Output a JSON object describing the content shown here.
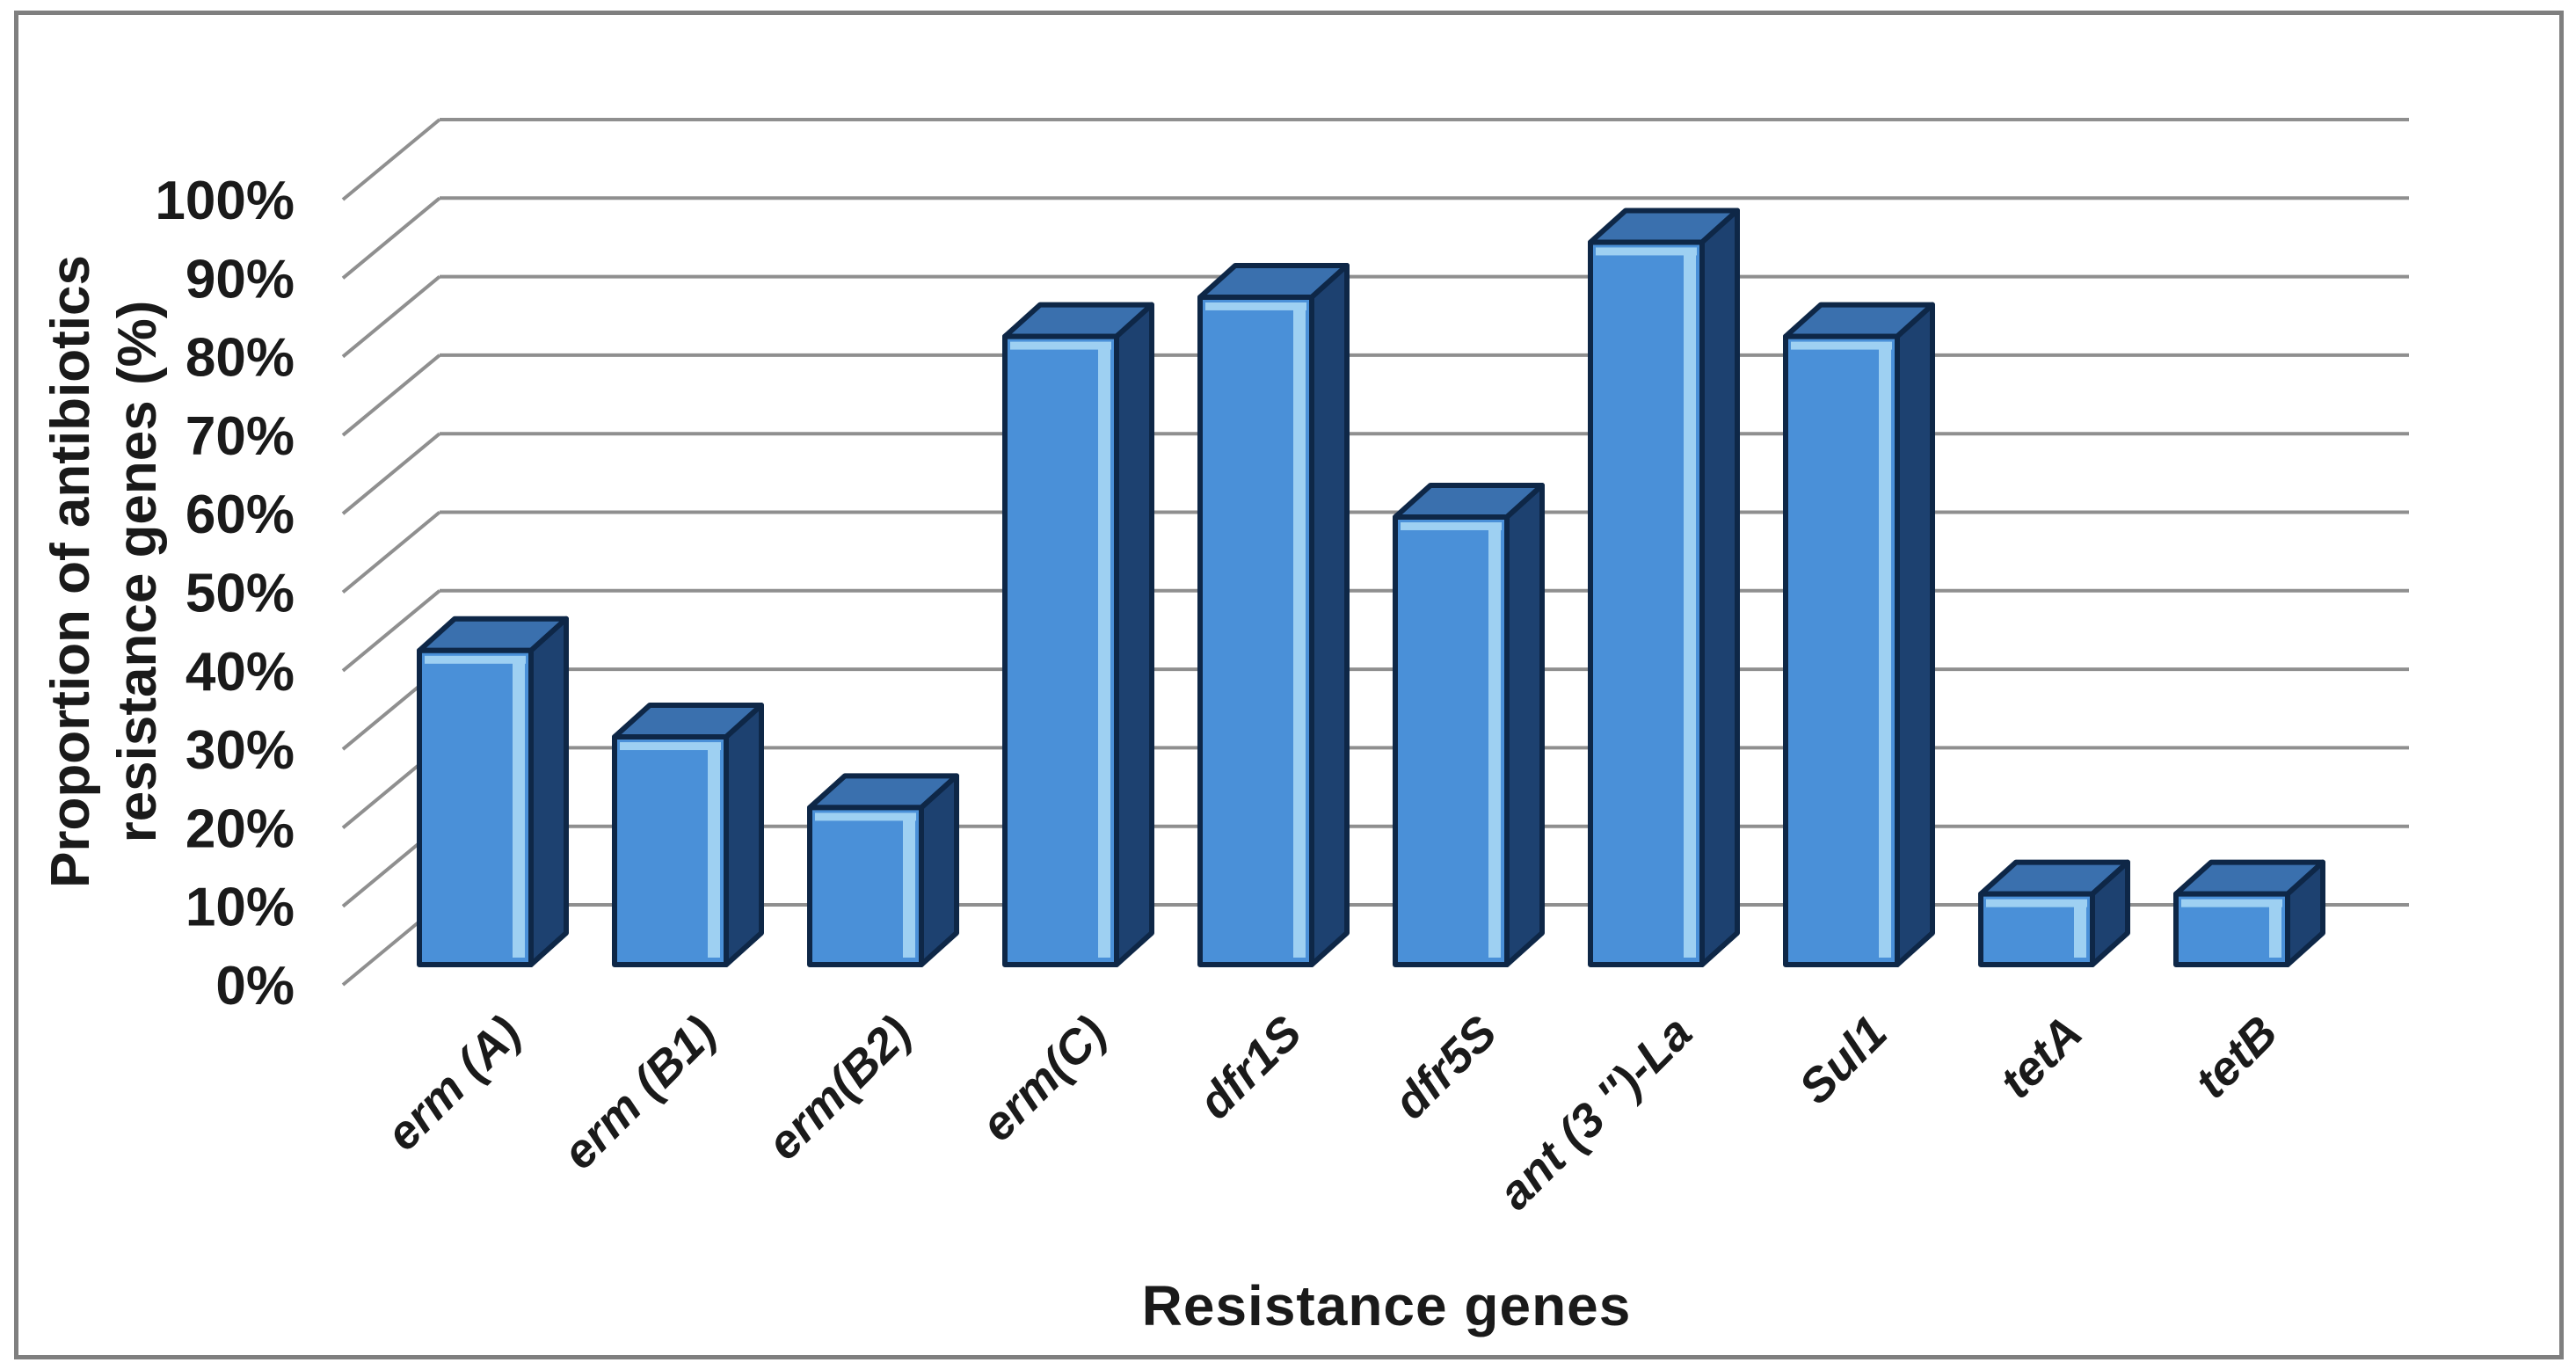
{
  "frame": {
    "border_color": "#7f7f7f",
    "background": "#ffffff"
  },
  "chart_data": {
    "type": "bar",
    "style": "3d-column",
    "title": "",
    "xlabel": "Resistance genes",
    "ylabel_lines": [
      "Proportion of antibiotics",
      "resistance genes (%)"
    ],
    "categories": [
      "erm (A)",
      "erm (B1)",
      "erm(B2)",
      "erm(C)",
      "dfr1S",
      "dfr5S",
      "ant (3 '')-La",
      "Sul1",
      "tetA",
      "tetB"
    ],
    "values": [
      40,
      29,
      20,
      80,
      85,
      57,
      92,
      80,
      9,
      9
    ],
    "value_unit": "%",
    "ylim": [
      0,
      100
    ],
    "ytick_step": 10,
    "ytick_labels": [
      "0%",
      "10%",
      "20%",
      "30%",
      "40%",
      "50%",
      "60%",
      "70%",
      "80%",
      "90%",
      "100%"
    ],
    "grid": true,
    "legend": "none",
    "colors": {
      "bar_front": "#4a90d8",
      "bar_front_highlight": "#9ed0f2",
      "bar_top": "#3a70ae",
      "bar_side": "#1d4170",
      "bar_outline": "#0e2747",
      "gridline": "#8f8f8f",
      "text": "#1a1a1a",
      "frame_border": "#7f7f7f",
      "background": "#ffffff"
    }
  }
}
